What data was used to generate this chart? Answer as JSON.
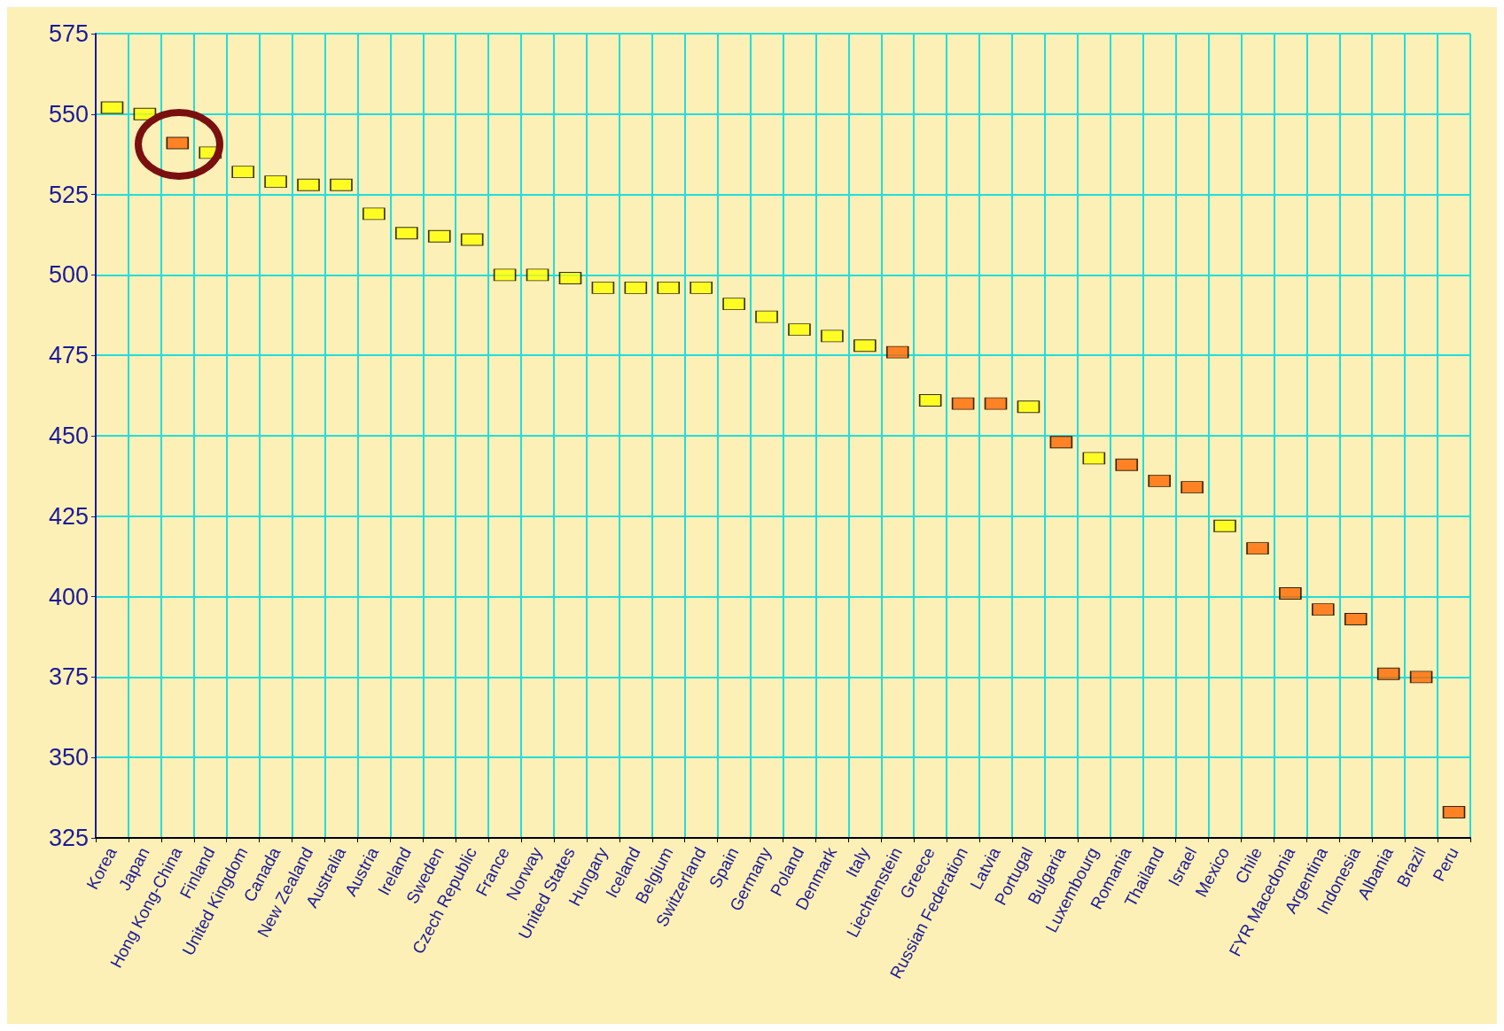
{
  "chart_data": {
    "type": "scatter",
    "marker": "square",
    "grid": true,
    "categories": [
      "Korea",
      "Japan",
      "Hong Kong-China",
      "Finland",
      "United Kingdom",
      "Canada",
      "New Zealand",
      "Australia",
      "Austria",
      "Ireland",
      "Sweden",
      "Czech Republic",
      "France",
      "Norway",
      "United States",
      "Hungary",
      "Iceland",
      "Belgium",
      "Switzerland",
      "Spain",
      "Germany",
      "Poland",
      "Denmark",
      "Italy",
      "Liechtenstein",
      "Greece",
      "Russian Federation",
      "Latvia",
      "Portugal",
      "Bulgaria",
      "Luxembourg",
      "Romania",
      "Thailand",
      "Israel",
      "Mexico",
      "Chile",
      "FYR Macedonia",
      "Argentina",
      "Indonesia",
      "Albania",
      "Brazil",
      "Peru"
    ],
    "values": [
      552,
      550,
      541,
      538,
      532,
      529,
      528,
      528,
      519,
      513,
      512,
      511,
      500,
      500,
      499,
      496,
      496,
      496,
      496,
      491,
      487,
      483,
      481,
      478,
      476,
      461,
      460,
      460,
      459,
      448,
      443,
      441,
      436,
      434,
      422,
      415,
      401,
      396,
      393,
      376,
      375,
      333
    ],
    "colors": [
      "#ffff00",
      "#ffff00",
      "#ff6600",
      "#ffff00",
      "#ffff00",
      "#ffff00",
      "#ffff00",
      "#ffff00",
      "#ffff00",
      "#ffff00",
      "#ffff00",
      "#ffff00",
      "#ffff00",
      "#ffff00",
      "#ffff00",
      "#ffff00",
      "#ffff00",
      "#ffff00",
      "#ffff00",
      "#ffff00",
      "#ffff00",
      "#ffff00",
      "#ffff00",
      "#ffff00",
      "#ff6600",
      "#ffff00",
      "#ff6600",
      "#ff6600",
      "#ffff00",
      "#ff6600",
      "#ffff00",
      "#ff6600",
      "#ff6600",
      "#ff6600",
      "#ffff00",
      "#ff6600",
      "#ff6600",
      "#ff6600",
      "#ff6600",
      "#ff6600",
      "#ff6600",
      "#ff6600"
    ],
    "ylim": [
      325,
      575
    ],
    "yticks": [
      325,
      350,
      375,
      400,
      425,
      450,
      475,
      500,
      525,
      550,
      575
    ]
  }
}
